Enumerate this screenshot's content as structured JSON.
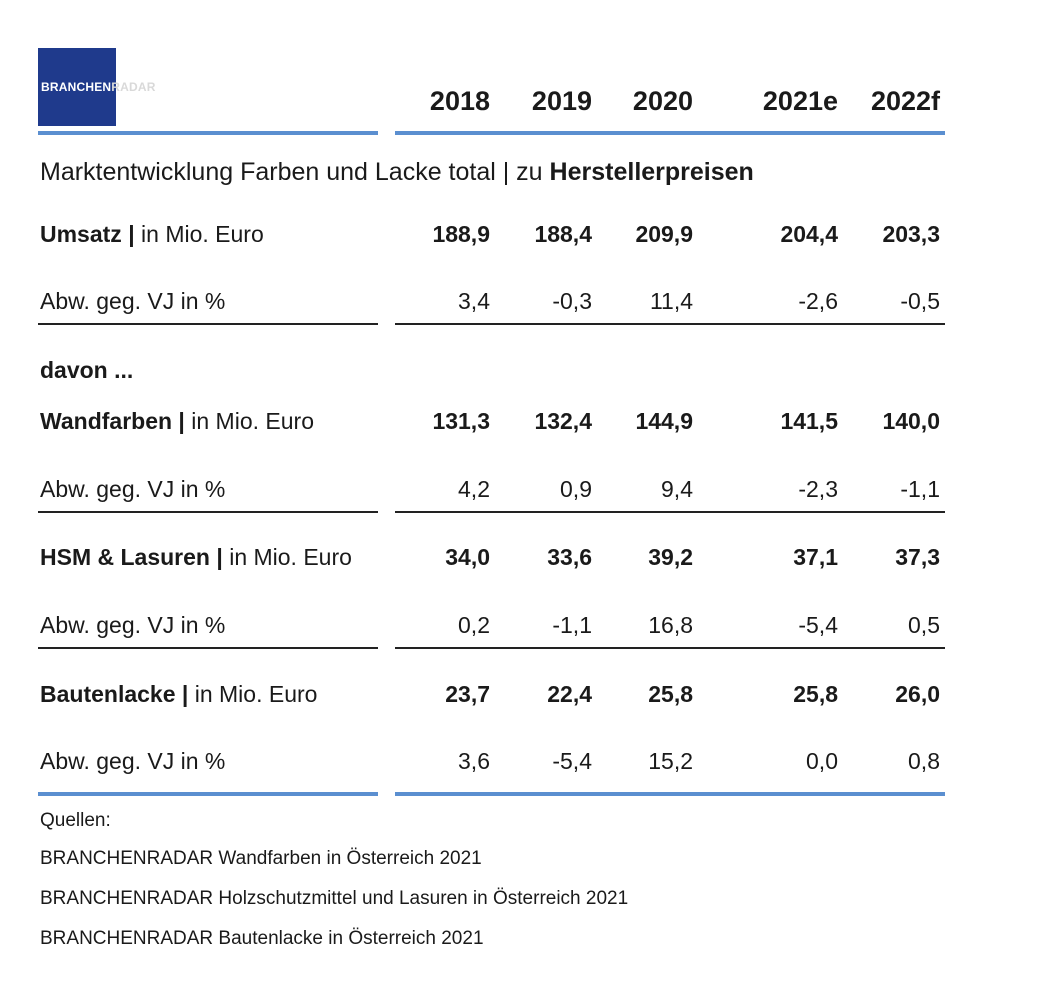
{
  "logo": {
    "part1": "BRANCHEN",
    "part2": "RADAR"
  },
  "subtitle": {
    "text": "Marktentwicklung Farben und Lacke total | zu ",
    "bold": "Herstellerpreisen"
  },
  "davon_label": "davon ...",
  "chart_data": {
    "type": "table",
    "columns": [
      "2018",
      "2019",
      "2020",
      "2021e",
      "2022f"
    ],
    "rows": [
      {
        "name": "Umsatz |",
        "unit": " in Mio. Euro",
        "values": [
          "188,9",
          "188,4",
          "209,9",
          "204,4",
          "203,3"
        ]
      },
      {
        "name": "Abw. geg. VJ in %",
        "values": [
          "3,4",
          "-0,3",
          "11,4",
          "-2,6",
          "-0,5"
        ]
      },
      {
        "name": "Wandfarben |",
        "unit": " in Mio. Euro",
        "values": [
          "131,3",
          "132,4",
          "144,9",
          "141,5",
          "140,0"
        ]
      },
      {
        "name": "Abw. geg. VJ in %",
        "values": [
          "4,2",
          "0,9",
          "9,4",
          "-2,3",
          "-1,1"
        ]
      },
      {
        "name": "HSM & Lasuren |",
        "unit": " in Mio. Euro",
        "values": [
          "34,0",
          "33,6",
          "39,2",
          "37,1",
          "37,3"
        ]
      },
      {
        "name": "Abw. geg. VJ in %",
        "values": [
          "0,2",
          "-1,1",
          "16,8",
          "-5,4",
          "0,5"
        ]
      },
      {
        "name": "Bautenlacke |",
        "unit": " in Mio. Euro",
        "values": [
          "23,7",
          "22,4",
          "25,8",
          "25,8",
          "26,0"
        ]
      },
      {
        "name": "Abw. geg. VJ in %",
        "values": [
          "3,6",
          "-5,4",
          "15,2",
          "0,0",
          "0,8"
        ]
      }
    ]
  },
  "sources": {
    "heading": "Quellen:",
    "items": [
      "BRANCHENRADAR Wandfarben in Österreich 2021",
      "BRANCHENRADAR Holzschutzmittel und Lasuren in Österreich 2021",
      "BRANCHENRADAR Bautenlacke in Österreich 2021"
    ]
  }
}
